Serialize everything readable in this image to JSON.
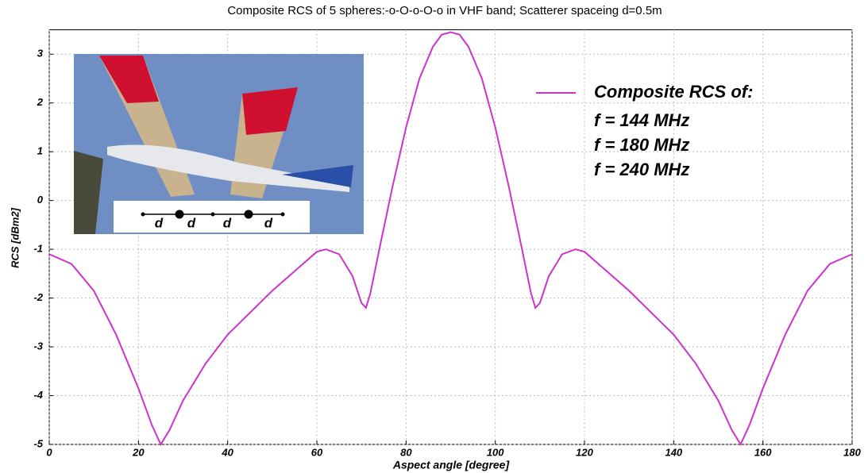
{
  "chart_data": {
    "type": "line",
    "title": "Composite RCS of 5 spheres:-o-O-o-O-o in VHF band; Scatterer spaceing d=0.5m",
    "x_label": "Aspect angle [degree]",
    "y_label": "RCS [dBm2]",
    "x": [
      0,
      5,
      10,
      15,
      20,
      23,
      25,
      27,
      30,
      35,
      40,
      45,
      50,
      55,
      60,
      62,
      65,
      68,
      70,
      71,
      72,
      74,
      77,
      80,
      83,
      86,
      88,
      90,
      92,
      94,
      97,
      100,
      103,
      106,
      108,
      109,
      110,
      112,
      115,
      118,
      120,
      125,
      130,
      135,
      140,
      145,
      150,
      153,
      155,
      157,
      160,
      165,
      170,
      175,
      180
    ],
    "series": [
      {
        "name": "Composite RCS of:",
        "color": "#cc33cc",
        "values": [
          -1.1,
          -1.3,
          -1.85,
          -2.75,
          -3.85,
          -4.6,
          -5.0,
          -4.7,
          -4.1,
          -3.35,
          -2.75,
          -2.3,
          -1.85,
          -1.45,
          -1.05,
          -1.0,
          -1.1,
          -1.55,
          -2.1,
          -2.2,
          -1.9,
          -1.0,
          0.3,
          1.5,
          2.5,
          3.15,
          3.4,
          3.45,
          3.4,
          3.15,
          2.5,
          1.5,
          0.3,
          -1.0,
          -1.9,
          -2.2,
          -2.1,
          -1.55,
          -1.1,
          -1.0,
          -1.05,
          -1.45,
          -1.85,
          -2.3,
          -2.75,
          -3.35,
          -4.1,
          -4.7,
          -5.0,
          -4.6,
          -3.85,
          -2.75,
          -1.85,
          -1.3,
          -1.1
        ]
      }
    ],
    "annotations": [
      "f = 144 MHz",
      "f = 180 MHz",
      "f = 240 MHz"
    ],
    "inset_labels": [
      "d",
      "d",
      "d",
      "d"
    ],
    "xlim": [
      0,
      180
    ],
    "xticks": [
      0,
      20,
      40,
      60,
      80,
      100,
      120,
      140,
      160,
      180
    ],
    "ylim": [
      -5,
      3.5
    ],
    "yticks": [
      -5,
      -4,
      -3,
      -2,
      -1,
      0,
      1,
      2,
      3
    ],
    "grid": true,
    "legend": "upper right"
  }
}
